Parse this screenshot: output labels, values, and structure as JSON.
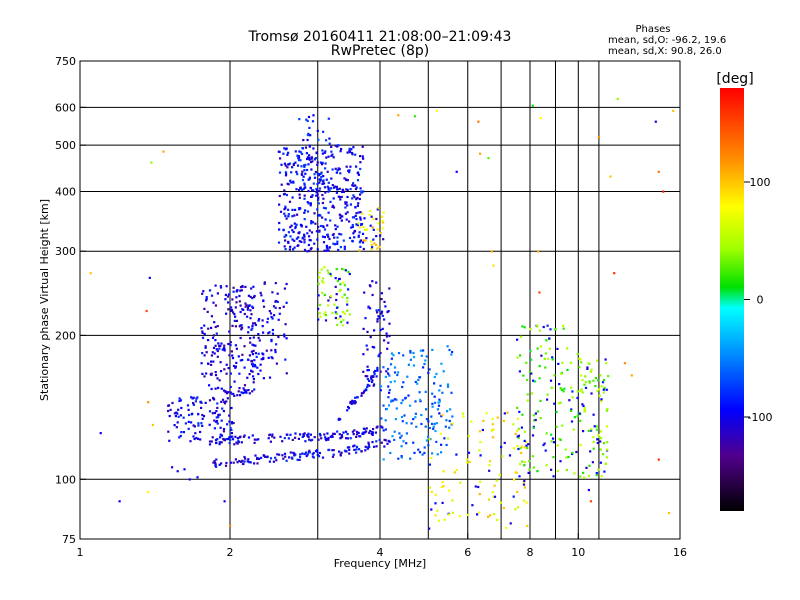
{
  "title": {
    "line1": "Tromsø 20160411 21:08:00–21:09:43",
    "line2": "RwPretec (8p)"
  },
  "stats": {
    "heading": "Phases",
    "line_o": "mean, sd,O: -96.2, 19.6",
    "line_x": "mean, sd,X:  90.8, 26.0"
  },
  "colorbar": {
    "unit_label": "[deg]",
    "range": [
      -180,
      180
    ],
    "ticks": [
      {
        "value": 100,
        "label": "100"
      },
      {
        "value": 0,
        "label": "0"
      },
      {
        "value": -100,
        "label": "-100"
      }
    ]
  },
  "chart_data": {
    "type": "scatter",
    "title": "Tromsø 20160411 21:08:00–21:09:43 RwPretec (8p)",
    "xlabel": "Frequency [MHz]",
    "ylabel": "Stationary phase Virtual Height [km]",
    "xscale": "log",
    "yscale": "log",
    "xlim": [
      1,
      16
    ],
    "ylim": [
      75,
      750
    ],
    "x_ticks": [
      1,
      2,
      4,
      6,
      8,
      10,
      16
    ],
    "y_ticks": [
      75,
      100,
      200,
      300,
      400,
      500,
      600,
      750
    ],
    "x_grid": [
      2,
      3,
      4,
      5,
      6,
      7,
      8,
      9,
      10,
      11
    ],
    "y_grid": [
      100,
      200,
      300,
      400,
      500,
      600
    ],
    "color_variable": "phase [deg]",
    "color_range": [
      -180,
      180
    ],
    "grid": true,
    "clusters": [
      {
        "x_range": [
          1.5,
          2.1
        ],
        "y_range": [
          120,
          150
        ],
        "phase": -100,
        "count": 120
      },
      {
        "x_range": [
          1.75,
          2.25
        ],
        "y_range": [
          150,
          255
        ],
        "phase": -105,
        "count": 220
      },
      {
        "x_range": [
          2.2,
          2.6
        ],
        "y_range": [
          160,
          260
        ],
        "phase": -100,
        "count": 90
      },
      {
        "x_range": [
          2.5,
          3.7
        ],
        "y_range": [
          300,
          500
        ],
        "phase": -95,
        "count": 420
      },
      {
        "x_range": [
          2.75,
          3.2
        ],
        "y_range": [
          400,
          580
        ],
        "phase": -90,
        "count": 60
      },
      {
        "x_range": [
          3.0,
          3.5
        ],
        "y_range": [
          210,
          280
        ],
        "phase": 40,
        "count": 70
      },
      {
        "x_range": [
          3.6,
          4.1
        ],
        "y_range": [
          300,
          370
        ],
        "phase": 90,
        "count": 45
      },
      {
        "x_range": [
          3.7,
          4.2
        ],
        "y_range": [
          150,
          260
        ],
        "phase": -100,
        "count": 70
      },
      {
        "x_range": [
          4.0,
          5.6
        ],
        "y_range": [
          110,
          190
        ],
        "phase": -60,
        "count": 160
      },
      {
        "x_range": [
          5.0,
          8.0
        ],
        "y_range": [
          78,
          140
        ],
        "phase": 80,
        "count": 120
      },
      {
        "x_range": [
          7.5,
          10.0
        ],
        "y_range": [
          100,
          210
        ],
        "phase": 30,
        "count": 140
      },
      {
        "x_range": [
          10.0,
          11.5
        ],
        "y_range": [
          100,
          180
        ],
        "phase": 40,
        "count": 100
      }
    ],
    "traces": [
      {
        "name": "",
        "x": [
          1.78,
          2.5,
          3.2,
          4.1
        ],
        "y": [
          120,
          122,
          123,
          127
        ],
        "phase": -100,
        "count": 130
      },
      {
        "name": "",
        "x": [
          1.85,
          2.5,
          3.3,
          4.2
        ],
        "y": [
          108,
          111,
          114,
          120
        ],
        "phase": -100,
        "count": 130
      },
      {
        "name": "",
        "x": [
          3.3,
          3.65,
          3.95
        ],
        "y": [
          135,
          150,
          168
        ],
        "phase": -100,
        "count": 40
      }
    ],
    "points": [
      {
        "x": 1.53,
        "y": 106,
        "phase": -100
      },
      {
        "x": 1.57,
        "y": 104,
        "phase": -100
      },
      {
        "x": 1.62,
        "y": 105,
        "phase": -95
      },
      {
        "x": 1.66,
        "y": 100,
        "phase": -100
      },
      {
        "x": 1.72,
        "y": 101,
        "phase": -90
      },
      {
        "x": 1.2,
        "y": 90,
        "phase": -100
      },
      {
        "x": 1.39,
        "y": 460,
        "phase": 40
      },
      {
        "x": 1.47,
        "y": 485,
        "phase": 110
      },
      {
        "x": 1.38,
        "y": 264,
        "phase": -90
      },
      {
        "x": 1.36,
        "y": 225,
        "phase": 150
      },
      {
        "x": 1.05,
        "y": 270,
        "phase": 100
      },
      {
        "x": 1.37,
        "y": 94,
        "phase": 80
      },
      {
        "x": 1.37,
        "y": 145,
        "phase": 120
      },
      {
        "x": 1.4,
        "y": 130,
        "phase": 100
      },
      {
        "x": 1.1,
        "y": 125,
        "phase": -100
      },
      {
        "x": 1.95,
        "y": 90,
        "phase": -100
      },
      {
        "x": 2.0,
        "y": 80,
        "phase": 120
      },
      {
        "x": 4.35,
        "y": 578,
        "phase": 110
      },
      {
        "x": 4.7,
        "y": 575,
        "phase": 20
      },
      {
        "x": 5.2,
        "y": 590,
        "phase": 80
      },
      {
        "x": 5.7,
        "y": 440,
        "phase": -100
      },
      {
        "x": 6.3,
        "y": 560,
        "phase": 130
      },
      {
        "x": 6.35,
        "y": 480,
        "phase": 110
      },
      {
        "x": 6.6,
        "y": 470,
        "phase": 30
      },
      {
        "x": 6.7,
        "y": 300,
        "phase": 110
      },
      {
        "x": 6.75,
        "y": 280,
        "phase": 90
      },
      {
        "x": 8.1,
        "y": 605,
        "phase": 10
      },
      {
        "x": 8.4,
        "y": 570,
        "phase": 80
      },
      {
        "x": 8.3,
        "y": 300,
        "phase": 110
      },
      {
        "x": 8.35,
        "y": 246,
        "phase": 150
      },
      {
        "x": 11.0,
        "y": 520,
        "phase": 120
      },
      {
        "x": 11.6,
        "y": 430,
        "phase": 100
      },
      {
        "x": 12.0,
        "y": 625,
        "phase": 40
      },
      {
        "x": 11.8,
        "y": 270,
        "phase": 160
      },
      {
        "x": 14.3,
        "y": 560,
        "phase": -110
      },
      {
        "x": 14.5,
        "y": 440,
        "phase": 130
      },
      {
        "x": 14.8,
        "y": 400,
        "phase": 170
      },
      {
        "x": 15.5,
        "y": 590,
        "phase": 100
      },
      {
        "x": 14.5,
        "y": 110,
        "phase": 160
      },
      {
        "x": 15.2,
        "y": 85,
        "phase": 100
      },
      {
        "x": 10.5,
        "y": 95,
        "phase": -100
      },
      {
        "x": 10.6,
        "y": 90,
        "phase": 150
      },
      {
        "x": 12.8,
        "y": 165,
        "phase": 110
      },
      {
        "x": 12.4,
        "y": 175,
        "phase": 120
      }
    ]
  }
}
